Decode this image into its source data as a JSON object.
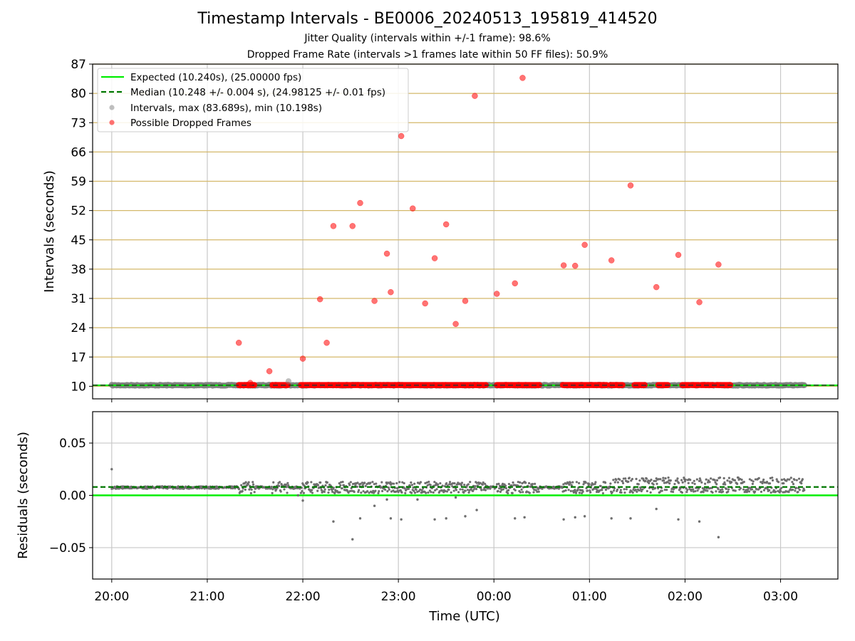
{
  "title": "Timestamp Intervals - BE0006_20240513_195819_414520",
  "subtitle1": "Jitter Quality (intervals within +/-1 frame): 98.6%",
  "subtitle2": "Dropped Frame Rate (intervals >1 frames late within 50 FF files): 50.9%",
  "colors": {
    "expected": "#00ee00",
    "median": "#007700",
    "intervals": "#808080",
    "dropped": "#ff0000",
    "hgrid_top": "#d4b86a",
    "grid": "#c8c8c8"
  },
  "chart_data": [
    {
      "type": "scatter",
      "ylabel": "Intervals (seconds)",
      "ylim": [
        7,
        87
      ],
      "yticks": [
        10,
        17,
        24,
        31,
        38,
        45,
        52,
        59,
        66,
        73,
        80,
        87
      ],
      "xlim_hours": [
        19.8,
        27.6
      ],
      "xticks": [
        {
          "h": 20,
          "label": "20:00"
        },
        {
          "h": 21,
          "label": "21:00"
        },
        {
          "h": 22,
          "label": "22:00"
        },
        {
          "h": 23,
          "label": "23:00"
        },
        {
          "h": 24,
          "label": "00:00"
        },
        {
          "h": 25,
          "label": "01:00"
        },
        {
          "h": 26,
          "label": "02:00"
        },
        {
          "h": 27,
          "label": "03:00"
        }
      ],
      "legend": {
        "position": "top-left",
        "entries": [
          {
            "kind": "line-solid",
            "label": "Expected (10.240s), (25.00000 fps)"
          },
          {
            "kind": "line-dashed",
            "label": "Median (10.248 +/- 0.004 s), (24.98125 +/- 0.01 fps)"
          },
          {
            "kind": "dot-gray",
            "label": "Intervals, max (83.689s), min (10.198s)"
          },
          {
            "kind": "dot-red",
            "label": "Possible Dropped Frames"
          }
        ]
      },
      "expected": 10.24,
      "median": 10.248,
      "interval_range_hours": [
        20.0,
        27.25
      ],
      "dropped_baseline_ranges": [
        [
          21.33,
          21.5
        ],
        [
          21.68,
          21.85
        ],
        [
          21.98,
          22.88
        ],
        [
          22.88,
          23.92
        ],
        [
          24.03,
          24.25
        ],
        [
          24.25,
          24.48
        ],
        [
          24.72,
          25.18
        ],
        [
          25.22,
          25.35
        ],
        [
          25.47,
          25.58
        ],
        [
          25.72,
          25.82
        ],
        [
          25.97,
          26.05
        ],
        [
          26.07,
          26.15
        ],
        [
          26.17,
          26.3
        ],
        [
          26.33,
          26.48
        ]
      ],
      "dropped_points": [
        {
          "x": 21.33,
          "y": 20.4
        },
        {
          "x": 21.45,
          "y": 10.8
        },
        {
          "x": 21.65,
          "y": 13.6
        },
        {
          "x": 22.0,
          "y": 16.6
        },
        {
          "x": 22.18,
          "y": 30.8
        },
        {
          "x": 22.25,
          "y": 20.4
        },
        {
          "x": 22.32,
          "y": 48.3
        },
        {
          "x": 22.52,
          "y": 48.3
        },
        {
          "x": 22.6,
          "y": 53.8
        },
        {
          "x": 22.75,
          "y": 30.4
        },
        {
          "x": 22.88,
          "y": 41.7
        },
        {
          "x": 22.92,
          "y": 32.5
        },
        {
          "x": 23.03,
          "y": 69.8
        },
        {
          "x": 23.15,
          "y": 52.5
        },
        {
          "x": 23.28,
          "y": 29.8
        },
        {
          "x": 23.38,
          "y": 40.6
        },
        {
          "x": 23.5,
          "y": 48.7
        },
        {
          "x": 23.6,
          "y": 24.9
        },
        {
          "x": 23.7,
          "y": 30.4
        },
        {
          "x": 23.8,
          "y": 79.4
        },
        {
          "x": 24.03,
          "y": 32.1
        },
        {
          "x": 24.22,
          "y": 34.6
        },
        {
          "x": 24.3,
          "y": 83.7
        },
        {
          "x": 24.73,
          "y": 38.9
        },
        {
          "x": 24.85,
          "y": 38.8
        },
        {
          "x": 24.95,
          "y": 43.8
        },
        {
          "x": 25.23,
          "y": 40.1
        },
        {
          "x": 25.43,
          "y": 58.0
        },
        {
          "x": 25.7,
          "y": 33.7
        },
        {
          "x": 25.93,
          "y": 41.4
        },
        {
          "x": 26.15,
          "y": 30.1
        },
        {
          "x": 26.35,
          "y": 39.1
        }
      ],
      "gray_points": [
        {
          "x": 21.85,
          "y": 11.2
        }
      ]
    },
    {
      "type": "scatter",
      "ylabel": "Residuals (seconds)",
      "xlabel": "Time (UTC)",
      "ylim": [
        -0.08,
        0.08
      ],
      "yticks": [
        {
          "v": 0.05,
          "label": "0.05"
        },
        {
          "v": 0.0,
          "label": "0.00"
        },
        {
          "v": -0.05,
          "label": "−0.05"
        }
      ],
      "expected": 0.0,
      "median": 0.008,
      "outliers": [
        {
          "x": 20.0,
          "y": 0.025
        },
        {
          "x": 21.95,
          "y": 0.0
        },
        {
          "x": 22.0,
          "y": -0.005
        },
        {
          "x": 22.32,
          "y": -0.025
        },
        {
          "x": 22.52,
          "y": -0.042
        },
        {
          "x": 22.6,
          "y": -0.022
        },
        {
          "x": 22.75,
          "y": -0.01
        },
        {
          "x": 22.88,
          "y": -0.004
        },
        {
          "x": 22.92,
          "y": -0.022
        },
        {
          "x": 23.03,
          "y": -0.023
        },
        {
          "x": 23.2,
          "y": -0.004
        },
        {
          "x": 23.38,
          "y": -0.023
        },
        {
          "x": 23.5,
          "y": -0.022
        },
        {
          "x": 23.6,
          "y": -0.002
        },
        {
          "x": 23.7,
          "y": -0.02
        },
        {
          "x": 23.82,
          "y": -0.014
        },
        {
          "x": 24.22,
          "y": -0.022
        },
        {
          "x": 24.32,
          "y": -0.021
        },
        {
          "x": 24.73,
          "y": -0.023
        },
        {
          "x": 24.85,
          "y": -0.021
        },
        {
          "x": 24.95,
          "y": -0.02
        },
        {
          "x": 25.23,
          "y": -0.022
        },
        {
          "x": 25.43,
          "y": -0.022
        },
        {
          "x": 25.7,
          "y": -0.013
        },
        {
          "x": 25.93,
          "y": -0.023
        },
        {
          "x": 26.15,
          "y": -0.025
        },
        {
          "x": 26.35,
          "y": -0.04
        }
      ]
    }
  ]
}
